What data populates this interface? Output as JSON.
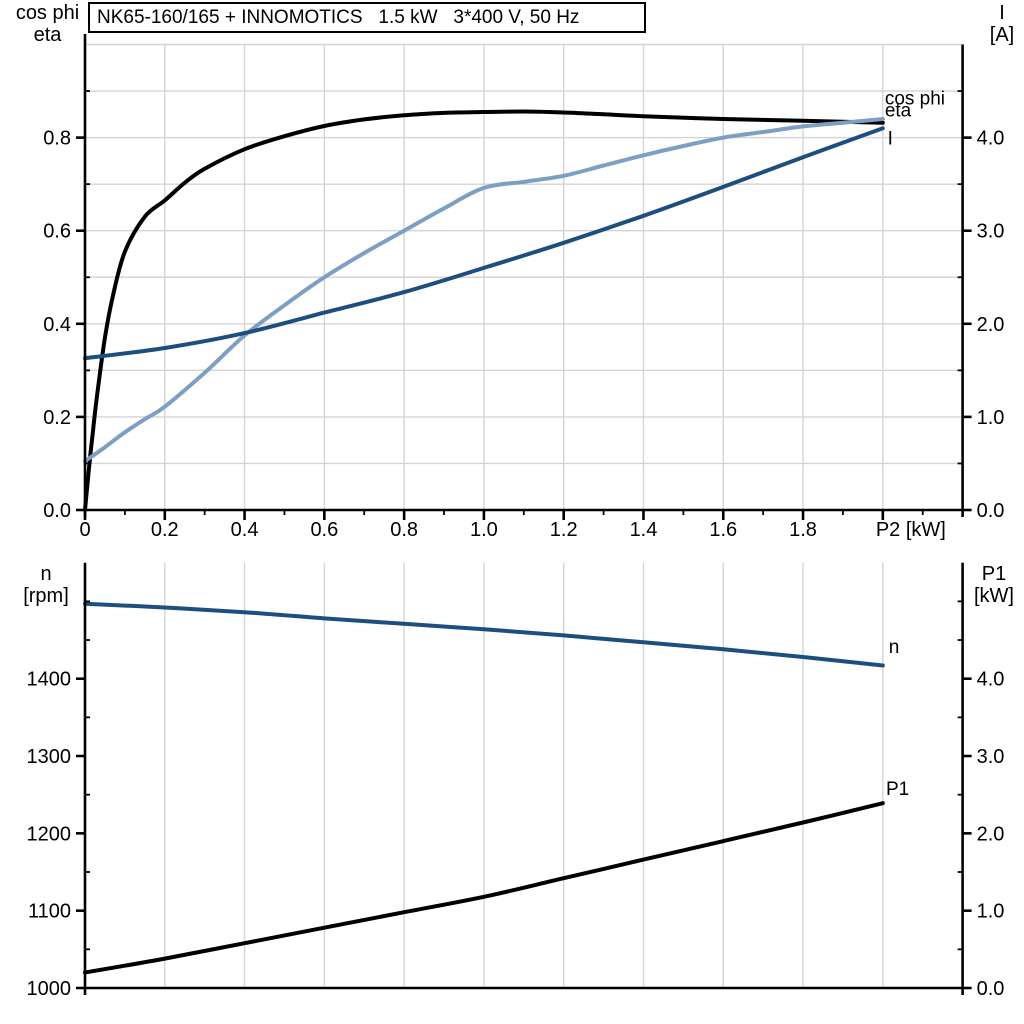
{
  "title": "NK65-160/165 + INNOMOTICS   1.5 kW   3*400 V, 50 Hz",
  "colors": {
    "black": "#000000",
    "dark_blue": "#1c4e7e",
    "light_blue": "#7d9fc4",
    "grid": "#d4d4d4"
  },
  "chart_data": [
    {
      "type": "line",
      "title": "NK65-160/165 + INNOMOTICS   1.5 kW   3*400 V, 50 Hz",
      "grid_axis": "left",
      "x_axis": {
        "min": 0,
        "max": 2.2,
        "grid_step": 0.2,
        "minor_step": 0.1,
        "label": "P2 [kW]",
        "label_at": 2.0,
        "ticks": [
          {
            "label": "0",
            "v": 0
          },
          {
            "label": "0.2",
            "v": 0.2
          },
          {
            "label": "0.4",
            "v": 0.4
          },
          {
            "label": "0.6",
            "v": 0.6
          },
          {
            "label": "0.8",
            "v": 0.8
          },
          {
            "label": "1.0",
            "v": 1.0
          },
          {
            "label": "1.2",
            "v": 1.2
          },
          {
            "label": "1.4",
            "v": 1.4
          },
          {
            "label": "1.6",
            "v": 1.6
          },
          {
            "label": "1.8",
            "v": 1.8
          },
          {
            "label": "",
            "v": 2.0
          }
        ]
      },
      "left_axis": {
        "label_lines": [
          "cos phi",
          "eta"
        ],
        "min": 0,
        "max": 1.0,
        "grid_step": 0.1,
        "minor_step": 0.1,
        "ticks": [
          {
            "label": "0.0",
            "v": 0
          },
          {
            "label": "0.2",
            "v": 0.2
          },
          {
            "label": "0.4",
            "v": 0.4
          },
          {
            "label": "0.6",
            "v": 0.6
          },
          {
            "label": "0.8",
            "v": 0.8
          }
        ]
      },
      "right_axis": {
        "label_lines": [
          "I",
          "[A]"
        ],
        "min": 0,
        "max": 5.0,
        "minor_step": 0.5,
        "ticks": [
          {
            "label": "0.0",
            "v": 0
          },
          {
            "label": "1.0",
            "v": 1.0
          },
          {
            "label": "2.0",
            "v": 2.0
          },
          {
            "label": "3.0",
            "v": 3.0
          },
          {
            "label": "4.0",
            "v": 4.0
          }
        ]
      },
      "series": [
        {
          "name": "eta",
          "axis": "left",
          "color": "black",
          "label_pos": {
            "x": 2.005,
            "y": 0.856
          },
          "points": [
            [
              0,
              0
            ],
            [
              0.01,
              0.09
            ],
            [
              0.02,
              0.17
            ],
            [
              0.03,
              0.245
            ],
            [
              0.05,
              0.37
            ],
            [
              0.07,
              0.46
            ],
            [
              0.1,
              0.555
            ],
            [
              0.15,
              0.63
            ],
            [
              0.2,
              0.665
            ],
            [
              0.25,
              0.703
            ],
            [
              0.3,
              0.733
            ],
            [
              0.4,
              0.775
            ],
            [
              0.5,
              0.803
            ],
            [
              0.6,
              0.825
            ],
            [
              0.7,
              0.839
            ],
            [
              0.8,
              0.848
            ],
            [
              0.9,
              0.853
            ],
            [
              1.0,
              0.855
            ],
            [
              1.1,
              0.856
            ],
            [
              1.2,
              0.854
            ],
            [
              1.3,
              0.85
            ],
            [
              1.4,
              0.846
            ],
            [
              1.6,
              0.84
            ],
            [
              1.8,
              0.836
            ],
            [
              2.0,
              0.832
            ]
          ]
        },
        {
          "name": "cos phi",
          "axis": "left",
          "color": "light_blue",
          "label_pos": {
            "x": 2.005,
            "y": 0.882
          },
          "points": [
            [
              0,
              0.105
            ],
            [
              0.05,
              0.135
            ],
            [
              0.1,
              0.167
            ],
            [
              0.15,
              0.195
            ],
            [
              0.2,
              0.222
            ],
            [
              0.3,
              0.295
            ],
            [
              0.4,
              0.375
            ],
            [
              0.5,
              0.44
            ],
            [
              0.6,
              0.5
            ],
            [
              0.7,
              0.552
            ],
            [
              0.8,
              0.6
            ],
            [
              0.9,
              0.648
            ],
            [
              1.0,
              0.692
            ],
            [
              1.1,
              0.705
            ],
            [
              1.2,
              0.718
            ],
            [
              1.3,
              0.74
            ],
            [
              1.4,
              0.762
            ],
            [
              1.5,
              0.782
            ],
            [
              1.6,
              0.8
            ],
            [
              1.7,
              0.812
            ],
            [
              1.8,
              0.824
            ],
            [
              1.9,
              0.832
            ],
            [
              2.0,
              0.84
            ]
          ]
        },
        {
          "name": "I",
          "axis": "right",
          "color": "dark_blue",
          "label_pos": {
            "x": 2.012,
            "y": 3.98
          },
          "points": [
            [
              0,
              1.63
            ],
            [
              0.2,
              1.74
            ],
            [
              0.4,
              1.9
            ],
            [
              0.6,
              2.12
            ],
            [
              0.8,
              2.34
            ],
            [
              1.0,
              2.6
            ],
            [
              1.2,
              2.87
            ],
            [
              1.4,
              3.16
            ],
            [
              1.6,
              3.47
            ],
            [
              1.8,
              3.79
            ],
            [
              2.0,
              4.1
            ]
          ]
        }
      ]
    },
    {
      "type": "line",
      "grid_axis": "right",
      "x_axis": {
        "min": 0,
        "max": 2.2,
        "grid_step": 0.2,
        "minor_step": null,
        "label": "",
        "label_at": 2.0,
        "ticks": []
      },
      "left_axis": {
        "label_lines": [
          "n",
          "[rpm]"
        ],
        "min": 1000,
        "max": 1550,
        "grid_step": 50,
        "minor_step": 50,
        "ticks": [
          {
            "label": "1000",
            "v": 1000
          },
          {
            "label": "1100",
            "v": 1100
          },
          {
            "label": "1200",
            "v": 1200
          },
          {
            "label": "1300",
            "v": 1300
          },
          {
            "label": "1400",
            "v": 1400
          }
        ]
      },
      "right_axis": {
        "label_lines": [
          "P1",
          "[kW]"
        ],
        "min": 0,
        "max": 5.5,
        "minor_step": 0.5,
        "ticks": [
          {
            "label": "0.0",
            "v": 0
          },
          {
            "label": "1.0",
            "v": 1.0
          },
          {
            "label": "2.0",
            "v": 2.0
          },
          {
            "label": "3.0",
            "v": 3.0
          },
          {
            "label": "4.0",
            "v": 4.0
          }
        ]
      },
      "series": [
        {
          "name": "n",
          "axis": "left",
          "color": "dark_blue",
          "label_pos": {
            "x": 2.015,
            "y": 1440
          },
          "points": [
            [
              0,
              1497
            ],
            [
              0.2,
              1492
            ],
            [
              0.4,
              1486
            ],
            [
              0.6,
              1478
            ],
            [
              0.8,
              1471
            ],
            [
              1.0,
              1464
            ],
            [
              1.2,
              1456
            ],
            [
              1.4,
              1447
            ],
            [
              1.6,
              1438
            ],
            [
              1.8,
              1428
            ],
            [
              2.0,
              1417
            ]
          ]
        },
        {
          "name": "P1",
          "axis": "right",
          "color": "black",
          "label_pos": {
            "x": 2.008,
            "y": 2.56
          },
          "points": [
            [
              0,
              0.2
            ],
            [
              0.2,
              0.38
            ],
            [
              0.4,
              0.58
            ],
            [
              0.6,
              0.78
            ],
            [
              0.8,
              0.98
            ],
            [
              1.0,
              1.18
            ],
            [
              1.2,
              1.42
            ],
            [
              1.4,
              1.66
            ],
            [
              1.6,
              1.9
            ],
            [
              1.8,
              2.14
            ],
            [
              2.0,
              2.39
            ]
          ]
        }
      ]
    }
  ]
}
